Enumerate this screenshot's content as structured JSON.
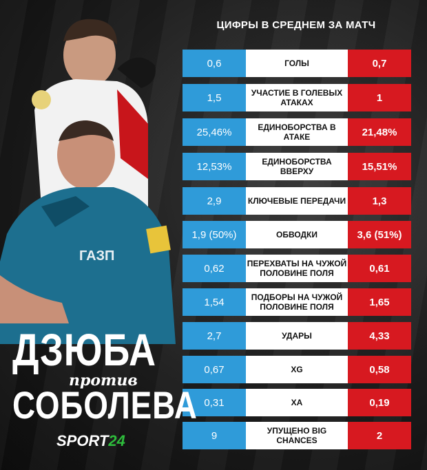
{
  "title": "ЦИФРЫ В СРЕДНЕМ ЗА МАТЧ",
  "headline": {
    "name1": "ДЗЮБА",
    "versus": "против",
    "name2": "СОБОЛЕВА"
  },
  "brand": {
    "prefix": "SPORT",
    "suffix": "24"
  },
  "colors": {
    "left": "#2f9bd9",
    "right": "#d71920",
    "middle": "#ffffff",
    "brand_accent": "#2ebd3c"
  },
  "rows": [
    {
      "left": "0,6",
      "label": "ГОЛЫ",
      "right": "0,7"
    },
    {
      "left": "1,5",
      "label": "УЧАСТИЕ В ГОЛЕВЫХ АТАКАХ",
      "right": "1"
    },
    {
      "left": "25,46%",
      "label": "ЕДИНОБОРСТВА В АТАКЕ",
      "right": "21,48%"
    },
    {
      "left": "12,53%",
      "label": "ЕДИНОБОРСТВА ВВЕРХУ",
      "right": "15,51%"
    },
    {
      "left": "2,9",
      "label": "КЛЮЧЕВЫЕ ПЕРЕДАЧИ",
      "right": "1,3"
    },
    {
      "left": "1,9 (50%)",
      "label": "ОБВОДКИ",
      "right": "3,6 (51%)"
    },
    {
      "left": "0,62",
      "label": "ПЕРЕХВАТЫ НА ЧУЖОЙ ПОЛОВИНЕ ПОЛЯ",
      "right": "0,61"
    },
    {
      "left": "1,54",
      "label": "ПОДБОРЫ НА ЧУЖОЙ ПОЛОВИНЕ ПОЛЯ",
      "right": "1,65"
    },
    {
      "left": "2,7",
      "label": "УДАРЫ",
      "right": "4,33"
    },
    {
      "left": "0,67",
      "label": "xG",
      "right": "0,58"
    },
    {
      "left": "0,31",
      "label": "xA",
      "right": "0,19"
    },
    {
      "left": "9",
      "label": "УПУЩЕНО BIG CHANCES",
      "right": "2"
    }
  ]
}
